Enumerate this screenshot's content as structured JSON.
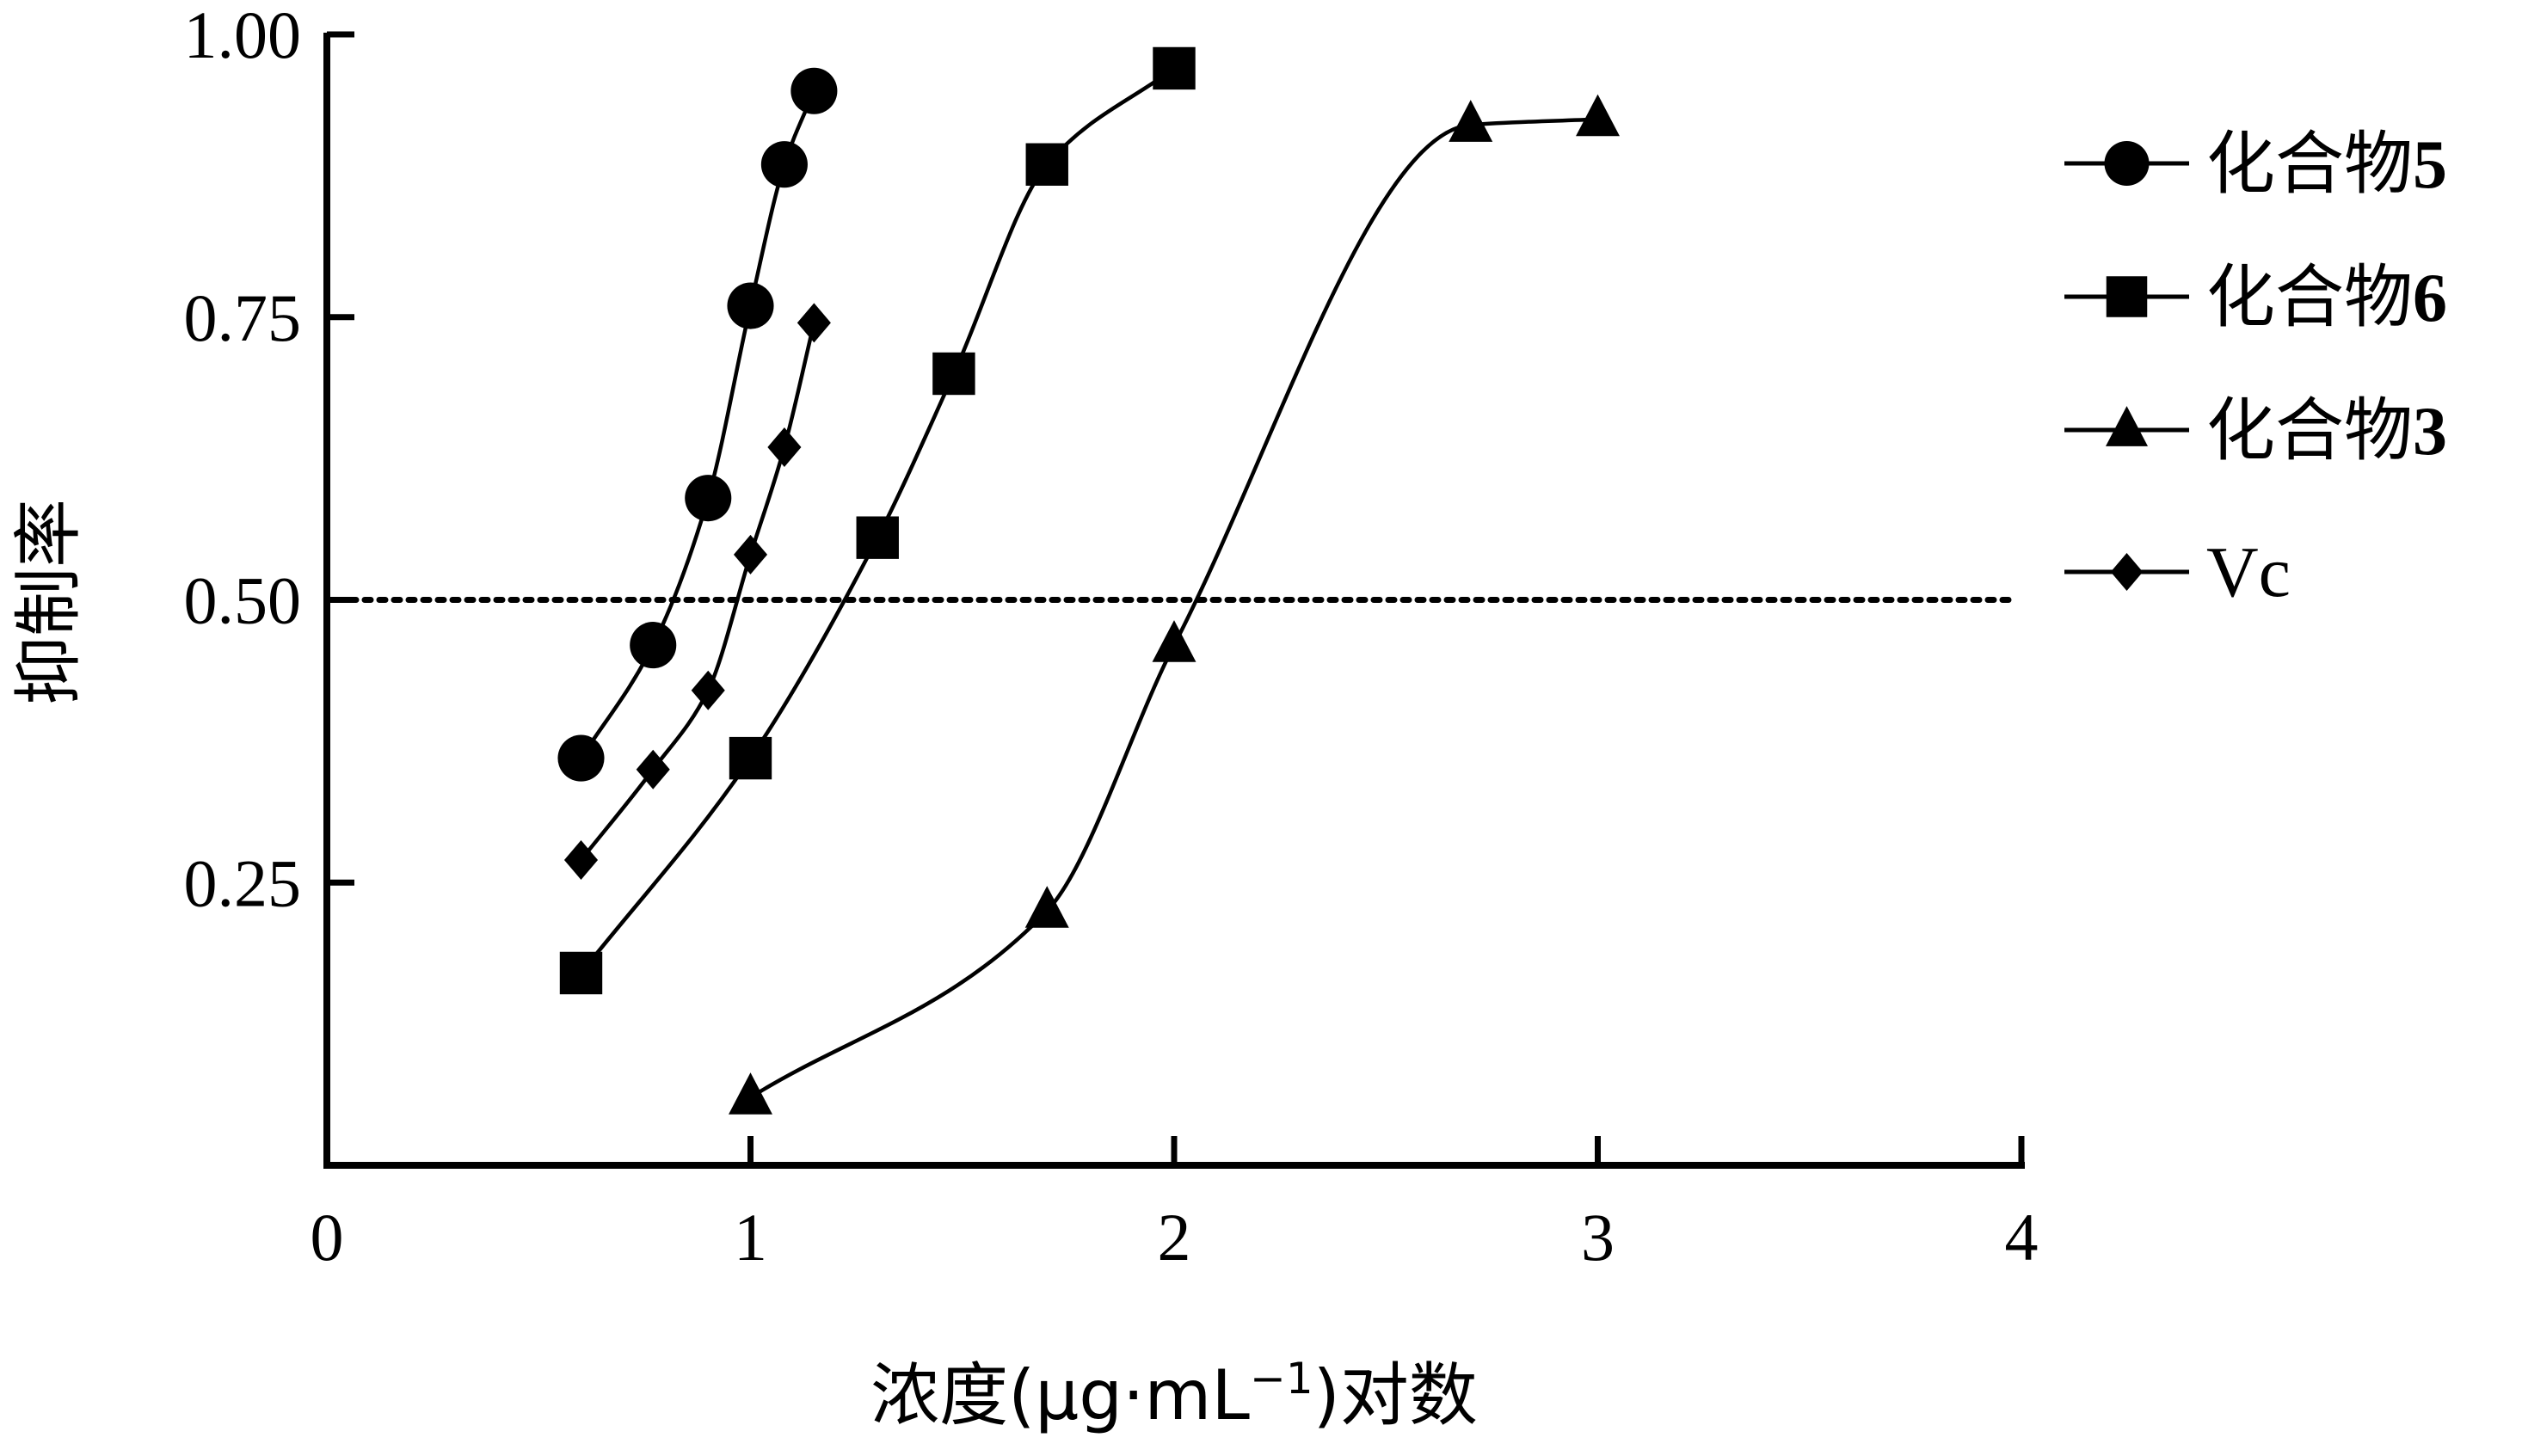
{
  "chart_data": {
    "type": "line",
    "title": "",
    "xlabel": "浓度(μg·mL⁻¹)对数",
    "xlabel_parts": {
      "before": "浓度(μg·mL",
      "sup": "−1",
      "after": ")对数"
    },
    "ylabel": "抑制率",
    "xlim": [
      0,
      4
    ],
    "ylim": [
      0,
      1.0
    ],
    "x_ticks": [
      "0",
      "1",
      "2",
      "3",
      "4"
    ],
    "y_ticks": [
      "0.25",
      "0.50",
      "0.75",
      "1.00"
    ],
    "x_tick_values": [
      0,
      1,
      2,
      3,
      4
    ],
    "y_tick_values": [
      0.25,
      0.5,
      0.75,
      1.0
    ],
    "reference_line": {
      "y": 0.5,
      "style": "dotted"
    },
    "grid": false,
    "legend_position": "right",
    "series": [
      {
        "name": "化合物5",
        "legend_prefix": "化合物",
        "legend_suffix": "5",
        "marker": "circle",
        "x": [
          0.6,
          0.77,
          0.9,
          1.0,
          1.08,
          1.15
        ],
        "y": [
          0.36,
          0.46,
          0.59,
          0.76,
          0.885,
          0.95
        ]
      },
      {
        "name": "化合物6",
        "legend_prefix": "化合物",
        "legend_suffix": "6",
        "marker": "square",
        "x": [
          0.6,
          1.0,
          1.3,
          1.48,
          1.7,
          2.0
        ],
        "y": [
          0.17,
          0.36,
          0.555,
          0.7,
          0.885,
          0.97
        ]
      },
      {
        "name": "化合物3",
        "legend_prefix": "化合物",
        "legend_suffix": "3",
        "marker": "triangle",
        "x": [
          1.0,
          1.7,
          2.0,
          2.7,
          3.0
        ],
        "y": [
          0.06,
          0.225,
          0.46,
          0.92,
          0.925
        ]
      },
      {
        "name": "Vc",
        "legend_prefix": "",
        "legend_suffix": "",
        "legend_latin": "Vc",
        "marker": "diamond",
        "x": [
          0.6,
          0.77,
          0.9,
          1.0,
          1.08,
          1.15
        ],
        "y": [
          0.27,
          0.35,
          0.42,
          0.54,
          0.635,
          0.745
        ]
      }
    ]
  }
}
